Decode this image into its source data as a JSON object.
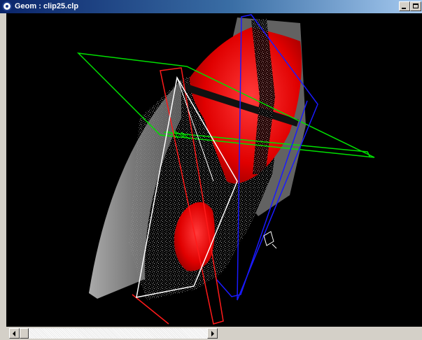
{
  "window": {
    "title": "Geom : clip25.clp",
    "icon": "app-globe-icon",
    "controls": [
      "minimize-icon",
      "maximize-icon"
    ]
  },
  "viewport": {
    "content": "3d-ultrasound-volume-render",
    "colors": {
      "background": "#000000",
      "surface": "#ff0000",
      "clip_plane_green": "#00e000",
      "clip_plane_blue": "#1a1aff",
      "clip_plane_red": "#ff1a1a",
      "clip_plane_white": "#ffffff",
      "sector_shell": "#9a9a9a"
    }
  },
  "scrollbar": {
    "orientation": "horizontal",
    "left_icon": "scroll-left-icon",
    "right_icon": "scroll-right-icon",
    "position": 0
  }
}
